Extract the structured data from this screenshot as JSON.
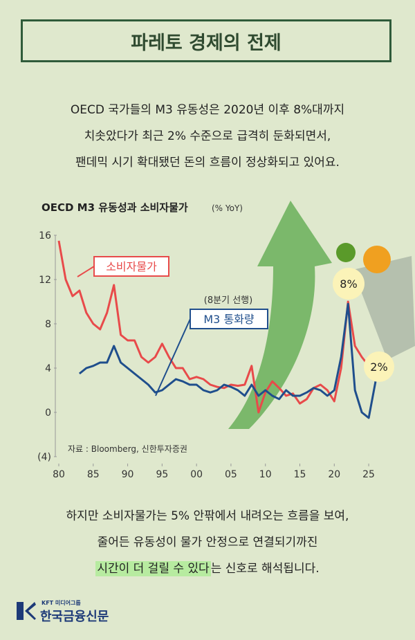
{
  "header": {
    "title": "파레토 경제의 전제"
  },
  "intro": [
    "OECD 국가들의 M3 유동성은 2020년 이후 8%대까지",
    "치솟았다가 최근 2% 수준으로 급격히 둔화되면서,",
    "팬데믹 시기 확대됐던 돈의 흐름이 정상화되고 있어요."
  ],
  "chart_data": {
    "type": "line",
    "title": "OECD M3 유동성과 소비자물가",
    "subtitle": "(% YoY)",
    "x": [
      1980,
      1981,
      1982,
      1983,
      1984,
      1985,
      1986,
      1987,
      1988,
      1989,
      1990,
      1991,
      1992,
      1993,
      1994,
      1995,
      1996,
      1997,
      1998,
      1999,
      2000,
      2001,
      2002,
      2003,
      2004,
      2005,
      2006,
      2007,
      2008,
      2009,
      2010,
      2011,
      2012,
      2013,
      2014,
      2015,
      2016,
      2017,
      2018,
      2019,
      2020,
      2021,
      2022,
      2023,
      2024,
      2025,
      2026
    ],
    "series": [
      {
        "name": "소비자물가",
        "color": "#e84a4a",
        "values": [
          15.5,
          12,
          10.5,
          11,
          9,
          8,
          7.5,
          9,
          11.5,
          7,
          6.5,
          6.5,
          5,
          4.5,
          5,
          6.2,
          5,
          4,
          4,
          3,
          3.2,
          3,
          2.5,
          2.3,
          2.2,
          2.5,
          2.4,
          2.5,
          4.2,
          0,
          1.8,
          2.8,
          2.2,
          1.5,
          1.7,
          0.8,
          1.2,
          2.2,
          2.5,
          2,
          1,
          4,
          10,
          6,
          5,
          4.2,
          4
        ]
      },
      {
        "name": "M3 통화량",
        "color": "#1f4e8c",
        "values": [
          null,
          null,
          null,
          3.5,
          4,
          4.2,
          4.5,
          4.5,
          6,
          4.5,
          4,
          3.5,
          3,
          2.5,
          1.8,
          2,
          2.5,
          3,
          2.8,
          2.5,
          2.5,
          2,
          1.8,
          2,
          2.5,
          2.3,
          2,
          1.5,
          2.5,
          1.5,
          2,
          1.5,
          1.2,
          2,
          1.5,
          1.5,
          1.8,
          2.2,
          2,
          1.5,
          2,
          5,
          9.8,
          2,
          0,
          -0.5,
          2.8
        ]
      }
    ],
    "xlim": [
      1980,
      2026.5
    ],
    "xticks": [
      {
        "value": 1980,
        "label": "80"
      },
      {
        "value": 1985,
        "label": "85"
      },
      {
        "value": 1990,
        "label": "90"
      },
      {
        "value": 1995,
        "label": "95"
      },
      {
        "value": 2000,
        "label": "00"
      },
      {
        "value": 2005,
        "label": "05"
      },
      {
        "value": 2010,
        "label": "10"
      },
      {
        "value": 2015,
        "label": "15"
      },
      {
        "value": 2020,
        "label": "20"
      },
      {
        "value": 2025,
        "label": "25"
      }
    ],
    "ylim": [
      -4,
      16
    ],
    "yticks": [
      {
        "value": -4,
        "label": "(4)"
      },
      0,
      4,
      8,
      12,
      16
    ],
    "annotations": [
      "(8분기 선행)",
      "8%",
      "2%",
      "자료 : Bloomberg, 신한투자증권"
    ]
  },
  "footer": {
    "lines": [
      "하지만 소비자물가는 5% 안팎에서 내려오는 흐름을 보여,",
      "줄어든 유동성이 물가 안정으로 연결되기까진"
    ],
    "highlight": "시간이 더 걸릴 수 있다",
    "rest": "는 신호로 해석됩니다."
  },
  "logo": {
    "group": "KFT 미디어그룹",
    "name": "한국금융신문"
  }
}
